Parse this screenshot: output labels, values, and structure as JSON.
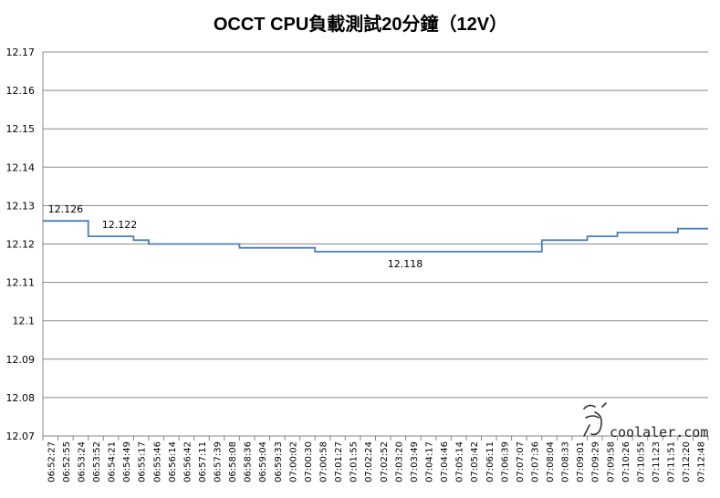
{
  "chart_data": {
    "type": "line",
    "title": "OCCT CPU負載測試20分鐘（12V）",
    "xlabel": "",
    "ylabel": "",
    "ylim": [
      12.07,
      12.17
    ],
    "yticks": [
      "12.17",
      "12.16",
      "12.15",
      "12.14",
      "12.13",
      "12.12",
      "12.11",
      "12.1",
      "12.09",
      "12.08",
      "12.07"
    ],
    "categories": [
      "06:52:27",
      "06:52:55",
      "06:53:24",
      "06:53:52",
      "06:54:21",
      "06:54:49",
      "06:55:17",
      "06:55:46",
      "06:56:14",
      "06:56:42",
      "06:57:11",
      "06:57:39",
      "06:58:08",
      "06:58:36",
      "06:59:04",
      "06:59:33",
      "07:00:02",
      "07:00:30",
      "07:00:58",
      "07:01:27",
      "07:01:55",
      "07:02:24",
      "07:02:52",
      "07:03:20",
      "07:03:49",
      "07:04:17",
      "07:04:46",
      "07:05:14",
      "07:05:42",
      "07:06:11",
      "07:06:39",
      "07:07:07",
      "07:07:36",
      "07:08:04",
      "07:08:33",
      "07:09:01",
      "07:09:29",
      "07:09:58",
      "07:10:26",
      "07:10:55",
      "07:11:23",
      "07:11:51",
      "07:12:20",
      "07:12:48"
    ],
    "series": [
      {
        "color": "#4a7ebb",
        "values": [
          12.126,
          12.126,
          12.126,
          12.122,
          12.122,
          12.122,
          12.121,
          12.12,
          12.12,
          12.12,
          12.12,
          12.12,
          12.12,
          12.119,
          12.119,
          12.119,
          12.119,
          12.119,
          12.118,
          12.118,
          12.118,
          12.118,
          12.118,
          12.118,
          12.118,
          12.118,
          12.118,
          12.118,
          12.118,
          12.118,
          12.118,
          12.118,
          12.118,
          12.121,
          12.121,
          12.121,
          12.122,
          12.122,
          12.123,
          12.123,
          12.123,
          12.123,
          12.124,
          12.124
        ]
      }
    ],
    "annotations": [
      {
        "text": "12.126",
        "x_index": 1,
        "value": 12.126
      },
      {
        "text": "12.122",
        "x_index": 3,
        "value": 12.122
      },
      {
        "text": "12.118",
        "x_index": 18,
        "value": 12.118
      }
    ],
    "grid": true,
    "legend": "none"
  },
  "watermark": {
    "text": "coolaler.com"
  }
}
